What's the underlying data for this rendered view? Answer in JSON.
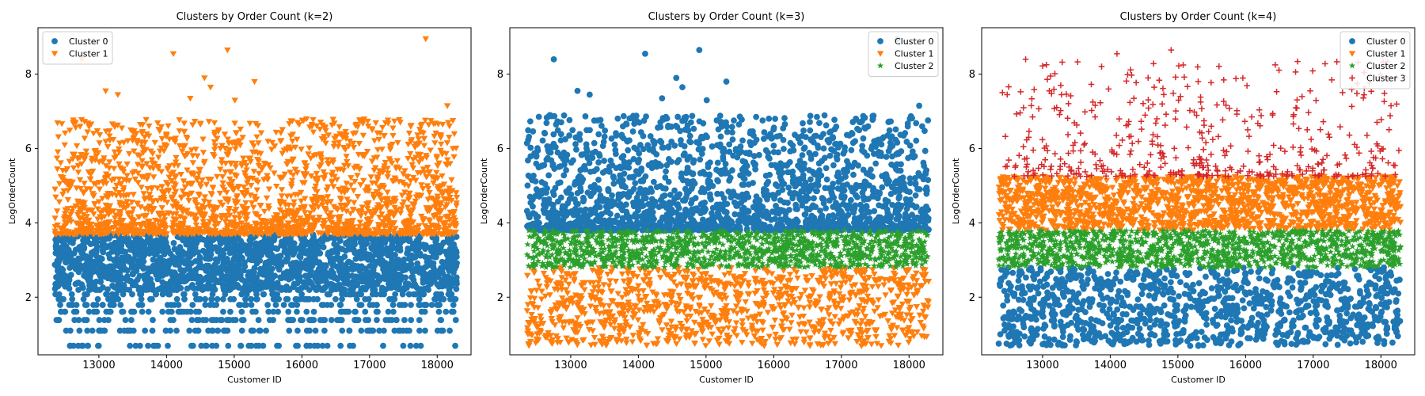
{
  "chart_data": [
    {
      "type": "scatter",
      "title": "Clusters by Order Count (k=2)",
      "xlabel": "Customer ID",
      "ylabel": "LogOrderCount",
      "xlim": [
        12100,
        18500
      ],
      "ylim": [
        0.45,
        9.25
      ],
      "xticks": [
        13000,
        14000,
        15000,
        16000,
        17000,
        18000
      ],
      "yticks": [
        2,
        4,
        6,
        8
      ],
      "x_range": [
        12350,
        18290
      ],
      "legend_position": "top-left",
      "series": [
        {
          "name": "Cluster 0",
          "marker": "circle",
          "color": "#1f77b4",
          "y_range": [
            0.69,
            3.7
          ],
          "approx_points": 2300
        },
        {
          "name": "Cluster 1",
          "marker": "triangle-down",
          "color": "#ff7f0e",
          "y_range": [
            3.7,
            9.0
          ],
          "approx_points": 2050
        }
      ],
      "outliers": [
        {
          "x": 12750,
          "y": 8.4,
          "series": 1
        },
        {
          "x": 14100,
          "y": 8.55,
          "series": 1
        },
        {
          "x": 14900,
          "y": 8.65,
          "series": 1
        },
        {
          "x": 17830,
          "y": 8.95,
          "series": 1
        },
        {
          "x": 13100,
          "y": 7.55,
          "series": 1
        },
        {
          "x": 13280,
          "y": 7.45,
          "series": 1
        },
        {
          "x": 14350,
          "y": 7.35,
          "series": 1
        },
        {
          "x": 14560,
          "y": 7.9,
          "series": 1
        },
        {
          "x": 14650,
          "y": 7.65,
          "series": 1
        },
        {
          "x": 15010,
          "y": 7.3,
          "series": 1
        },
        {
          "x": 15300,
          "y": 7.8,
          "series": 1
        },
        {
          "x": 18150,
          "y": 7.15,
          "series": 1
        }
      ]
    },
    {
      "type": "scatter",
      "title": "Clusters by Order Count (k=3)",
      "xlabel": "Customer ID",
      "ylabel": "LogOrderCount",
      "xlim": [
        12100,
        18500
      ],
      "ylim": [
        0.45,
        9.25
      ],
      "xticks": [
        13000,
        14000,
        15000,
        16000,
        17000,
        18000
      ],
      "yticks": [
        2,
        4,
        6,
        8
      ],
      "x_range": [
        12350,
        18290
      ],
      "legend_position": "top-right",
      "series": [
        {
          "name": "Cluster 0",
          "marker": "circle",
          "color": "#1f77b4",
          "y_range": [
            3.8,
            9.0
          ],
          "approx_points": 2000
        },
        {
          "name": "Cluster 1",
          "marker": "triangle-down",
          "color": "#ff7f0e",
          "y_range": [
            0.69,
            2.8
          ],
          "approx_points": 1100
        },
        {
          "name": "Cluster 2",
          "marker": "star",
          "color": "#2ca02c",
          "y_range": [
            2.8,
            3.8
          ],
          "approx_points": 1250
        }
      ],
      "outliers": [
        {
          "x": 12750,
          "y": 8.4,
          "series": 0
        },
        {
          "x": 14100,
          "y": 8.55,
          "series": 0
        },
        {
          "x": 14900,
          "y": 8.65,
          "series": 0
        },
        {
          "x": 17830,
          "y": 8.95,
          "series": 0
        },
        {
          "x": 13100,
          "y": 7.55,
          "series": 0
        },
        {
          "x": 13280,
          "y": 7.45,
          "series": 0
        },
        {
          "x": 14350,
          "y": 7.35,
          "series": 0
        },
        {
          "x": 14560,
          "y": 7.9,
          "series": 0
        },
        {
          "x": 14650,
          "y": 7.65,
          "series": 0
        },
        {
          "x": 15010,
          "y": 7.3,
          "series": 0
        },
        {
          "x": 15300,
          "y": 7.8,
          "series": 0
        },
        {
          "x": 18150,
          "y": 7.15,
          "series": 0
        }
      ]
    },
    {
      "type": "scatter",
      "title": "Clusters by Order Count (k=4)",
      "xlabel": "Customer ID",
      "ylabel": "LogOrderCount",
      "xlim": [
        12100,
        18500
      ],
      "ylim": [
        0.45,
        9.25
      ],
      "xticks": [
        13000,
        14000,
        15000,
        16000,
        17000,
        18000
      ],
      "yticks": [
        2,
        4,
        6,
        8
      ],
      "x_range": [
        12350,
        18290
      ],
      "legend_position": "top-right",
      "series": [
        {
          "name": "Cluster 0",
          "marker": "circle",
          "color": "#1f77b4",
          "y_range": [
            0.69,
            2.8
          ],
          "approx_points": 1100
        },
        {
          "name": "Cluster 1",
          "marker": "triangle-down",
          "color": "#ff7f0e",
          "y_range": [
            3.8,
            5.25
          ],
          "approx_points": 1550
        },
        {
          "name": "Cluster 2",
          "marker": "star",
          "color": "#2ca02c",
          "y_range": [
            2.8,
            3.8
          ],
          "approx_points": 1250
        },
        {
          "name": "Cluster 3",
          "marker": "plus",
          "color": "#d62728",
          "y_range": [
            5.25,
            9.0
          ],
          "approx_points": 450
        }
      ],
      "outliers": [
        {
          "x": 12750,
          "y": 8.4,
          "series": 3
        },
        {
          "x": 14100,
          "y": 8.55,
          "series": 3
        },
        {
          "x": 14900,
          "y": 8.65,
          "series": 3
        },
        {
          "x": 17830,
          "y": 8.95,
          "series": 3
        },
        {
          "x": 13100,
          "y": 7.55,
          "series": 3
        },
        {
          "x": 13280,
          "y": 7.45,
          "series": 3
        },
        {
          "x": 14350,
          "y": 7.35,
          "series": 3
        },
        {
          "x": 14560,
          "y": 7.9,
          "series": 3
        },
        {
          "x": 14650,
          "y": 7.65,
          "series": 3
        },
        {
          "x": 15010,
          "y": 7.3,
          "series": 3
        },
        {
          "x": 15300,
          "y": 7.8,
          "series": 3
        },
        {
          "x": 18150,
          "y": 7.15,
          "series": 3
        }
      ]
    }
  ]
}
